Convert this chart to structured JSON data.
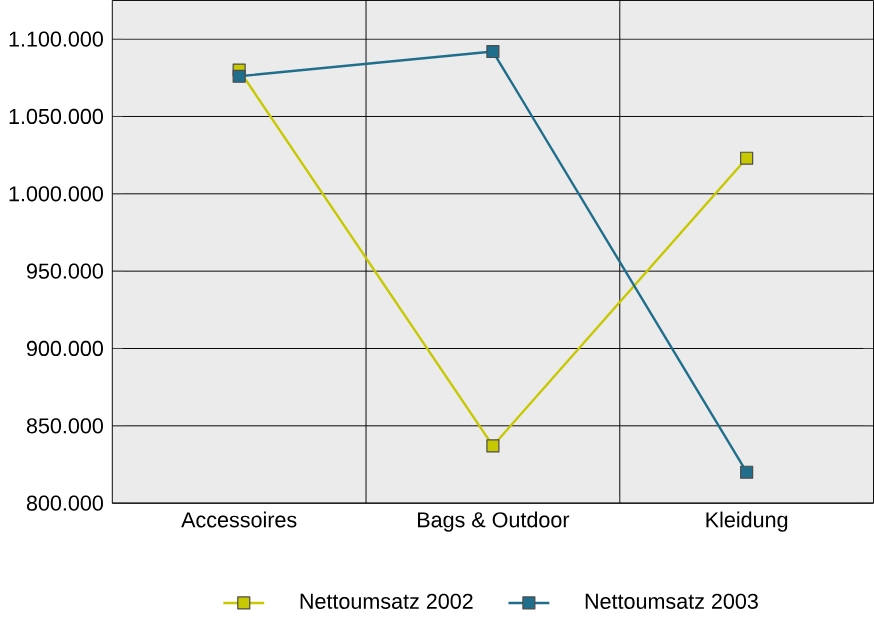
{
  "chart_data": {
    "type": "line",
    "categories": [
      "Accessoires",
      "Bags & Outdoor",
      "Kleidung"
    ],
    "series": [
      {
        "name": "Nettoumsatz 2002",
        "color": "#c8c800",
        "values": [
          1080000,
          837000,
          1023000
        ]
      },
      {
        "name": "Nettoumsatz 2003",
        "color": "#1f6e8c",
        "values": [
          1076000,
          1092000,
          820000
        ]
      }
    ],
    "ylim": [
      800000,
      1125000
    ],
    "yticks": [
      {
        "value": 800000,
        "label": "800.000"
      },
      {
        "value": 850000,
        "label": "850.000"
      },
      {
        "value": 900000,
        "label": "900.000"
      },
      {
        "value": 950000,
        "label": "950.000"
      },
      {
        "value": 1000000,
        "label": "1.000.000"
      },
      {
        "value": 1050000,
        "label": "1.050.000"
      },
      {
        "value": 1100000,
        "label": "1.100.000"
      }
    ],
    "grid": true,
    "legend": "bottom",
    "marker": "square",
    "line_style": "solid"
  }
}
